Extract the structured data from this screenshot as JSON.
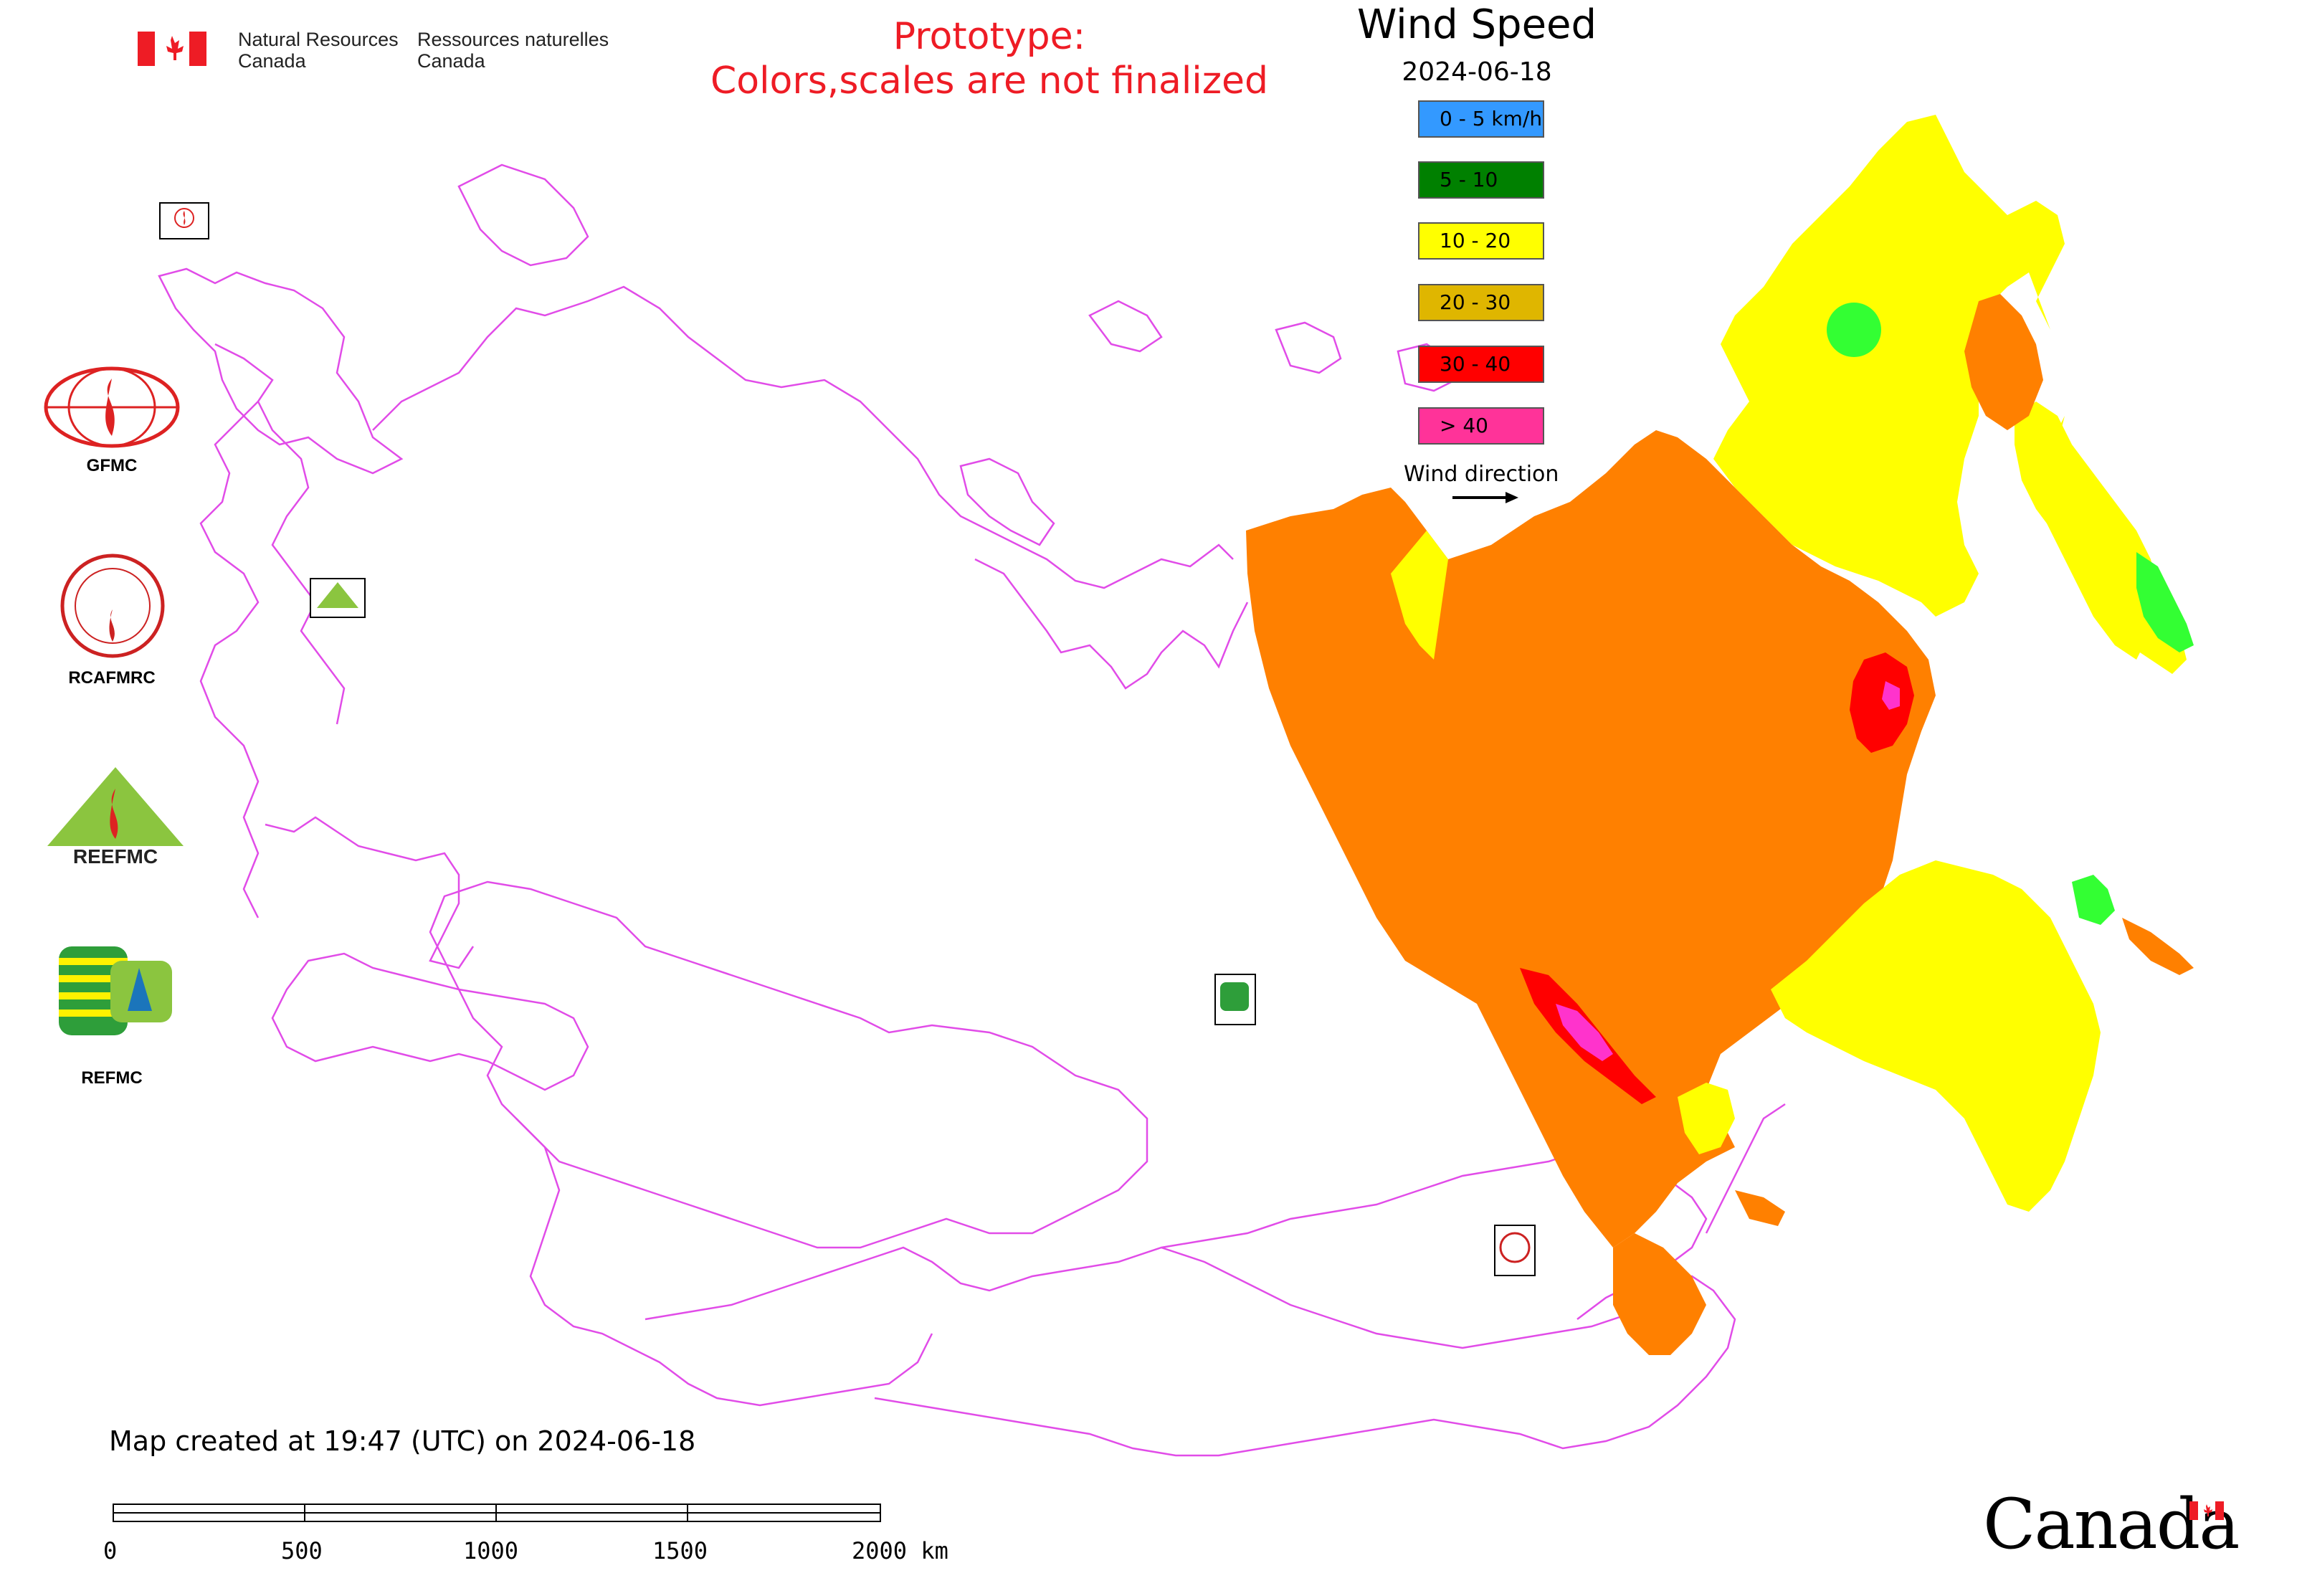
{
  "header": {
    "agency_en_line1": "Natural Resources",
    "agency_en_line2": "Canada",
    "agency_fr_line1": "Ressources naturelles",
    "agency_fr_line2": "Canada"
  },
  "notice": {
    "line1": "Prototype:",
    "line2": "Colors,scales are not finalized",
    "color": "#ee1c25"
  },
  "map": {
    "title": "Wind Speed",
    "date": "2024-06-18",
    "boundary_color": "#e14ce8"
  },
  "legend": {
    "items": [
      {
        "label": "0 - 5 km/h",
        "color": "#3399ff"
      },
      {
        "label": "5 - 10",
        "color": "#008000"
      },
      {
        "label": "10 - 20",
        "color": "#ffff00"
      },
      {
        "label": "20 - 30",
        "color": "#dfb600"
      },
      {
        "label": "30 - 40",
        "color": "#ff0000"
      },
      {
        "label": "> 40",
        "color": "#ff3399"
      }
    ],
    "wind_direction_label": "Wind direction"
  },
  "organizations": [
    {
      "label": "GFMC"
    },
    {
      "label": "RCAFMRC"
    },
    {
      "label": ""
    },
    {
      "label": "REFMC"
    }
  ],
  "footer": {
    "created_text": "Map created at 19:47 (UTC) on 2024-06-18",
    "scale_labels": [
      "0",
      "500",
      "1000",
      "1500",
      "2000 km"
    ],
    "wordmark": "Canada"
  },
  "zone_colors": {
    "orange": "#ff8000",
    "yellow": "#ffff00",
    "light_green": "#33ff33",
    "red": "#ff0000",
    "magenta": "#ff33cc"
  }
}
